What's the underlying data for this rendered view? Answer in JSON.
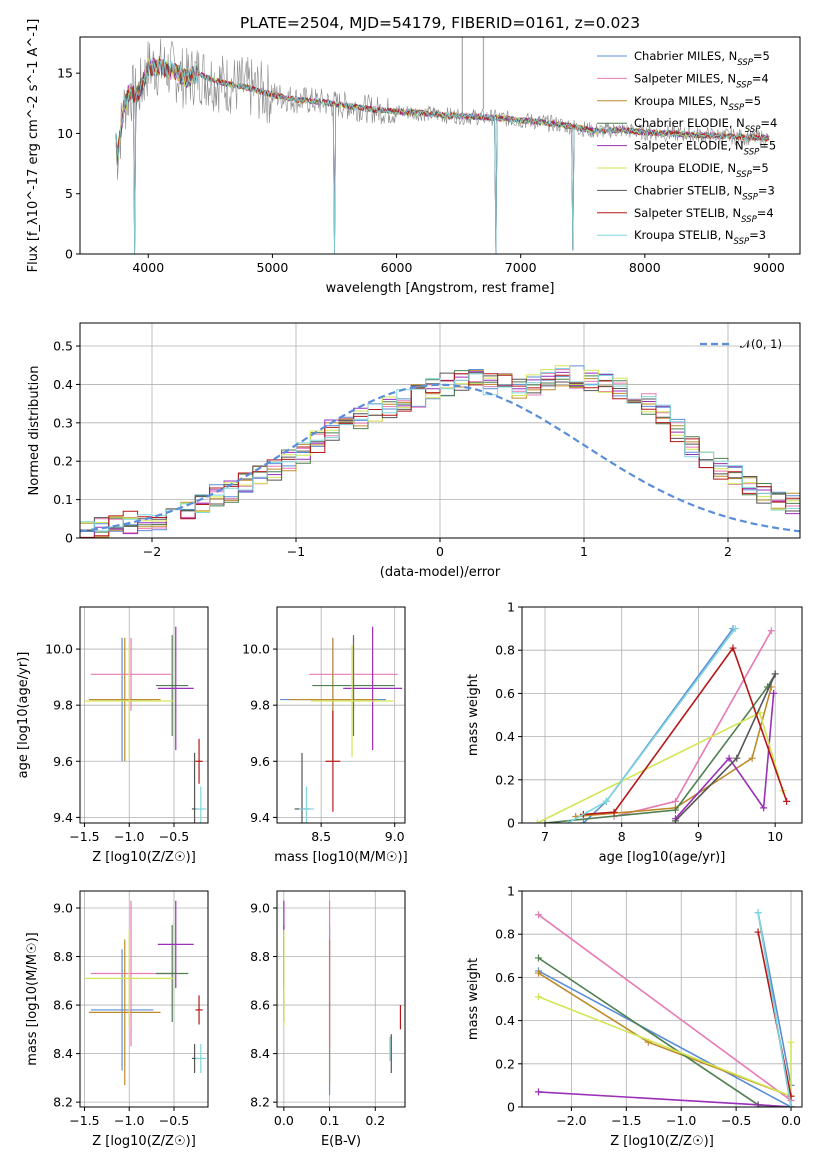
{
  "title": "PLATE=2504, MJD=54179, FIBERID=0161, z=0.023",
  "series": [
    {
      "name": "Chabrier MILES",
      "nssp": "5",
      "color": "#5b8ed8"
    },
    {
      "name": "Salpeter MILES",
      "nssp": "4",
      "color": "#e87ab4"
    },
    {
      "name": "Kroupa MILES",
      "nssp": "5",
      "color": "#c08a2a"
    },
    {
      "name": "Chabrier ELODIE",
      "nssp": "4",
      "color": "#4f7f4f"
    },
    {
      "name": "Salpeter ELODIE",
      "nssp": "5",
      "color": "#9a2fb8"
    },
    {
      "name": "Kroupa ELODIE",
      "nssp": "5",
      "color": "#d2e655"
    },
    {
      "name": "Chabrier STELIB",
      "nssp": "3",
      "color": "#555555"
    },
    {
      "name": "Salpeter STELIB",
      "nssp": "4",
      "color": "#b51818"
    },
    {
      "name": "Kroupa STELIB",
      "nssp": "3",
      "color": "#7fd6dd"
    }
  ],
  "chart_data": [
    {
      "id": "spectrum",
      "type": "line",
      "xlabel": "wavelength [Angstrom, rest frame]",
      "ylabel": "Flux [f_λ10^-17 erg cm^-2 s^-1 A^-1]",
      "xlim": [
        3450,
        9250
      ],
      "ylim": [
        0,
        18
      ],
      "xticks": [
        4000,
        5000,
        6000,
        7000,
        8000,
        9000
      ],
      "yticks": [
        0,
        5,
        10,
        15
      ],
      "grid": false,
      "legend": "top-right",
      "spectrum_points": [
        [
          3750,
          8.0
        ],
        [
          3800,
          12
        ],
        [
          3850,
          13.5
        ],
        [
          3900,
          13
        ],
        [
          3950,
          14
        ],
        [
          4000,
          15.5
        ],
        [
          4100,
          15.5
        ],
        [
          4200,
          15.2
        ],
        [
          4300,
          14.5
        ],
        [
          4400,
          15
        ],
        [
          4500,
          14.5
        ],
        [
          4600,
          14.2
        ],
        [
          4700,
          14
        ],
        [
          4800,
          13.8
        ],
        [
          4900,
          13.5
        ],
        [
          5000,
          13.2
        ],
        [
          5200,
          12.8
        ],
        [
          5400,
          12.6
        ],
        [
          5600,
          12.3
        ],
        [
          5800,
          12
        ],
        [
          6000,
          11.8
        ],
        [
          6200,
          11.7
        ],
        [
          6400,
          11.5
        ],
        [
          6600,
          11.4
        ],
        [
          6800,
          11.3
        ],
        [
          7000,
          11.1
        ],
        [
          7200,
          10.9
        ],
        [
          7400,
          10.6
        ],
        [
          7600,
          10.2
        ],
        [
          7800,
          10.3
        ],
        [
          8000,
          10.1
        ],
        [
          8200,
          10.0
        ],
        [
          8400,
          9.9
        ],
        [
          8600,
          9.8
        ],
        [
          8800,
          9.7
        ],
        [
          9000,
          9.6
        ]
      ],
      "dips": [
        [
          3890,
          0
        ],
        [
          5500,
          0
        ],
        [
          6800,
          0
        ],
        [
          7420,
          0.3
        ]
      ]
    },
    {
      "id": "residuals",
      "type": "line",
      "xlabel": "(data-model)/error",
      "ylabel": "Normed distribution",
      "xlim": [
        -2.5,
        2.5
      ],
      "ylim": [
        0,
        0.56
      ],
      "xticks": [
        -2,
        -1,
        0,
        1,
        2
      ],
      "xticklabels": [
        "−2",
        "−1",
        "0",
        "1",
        "2"
      ],
      "yticks": [
        0.0,
        0.1,
        0.2,
        0.3,
        0.4,
        0.5
      ],
      "grid": true,
      "legend": "top-right",
      "normal_label": "𝒩(0, 1)",
      "normal_color": "#5b8ed8",
      "bin_width": 0.1,
      "bin_start": -2.5,
      "base_hist": [
        0.02,
        0.03,
        0.035,
        0.04,
        0.04,
        0.05,
        0.06,
        0.07,
        0.09,
        0.11,
        0.12,
        0.14,
        0.16,
        0.18,
        0.2,
        0.22,
        0.25,
        0.28,
        0.3,
        0.31,
        0.33,
        0.34,
        0.36,
        0.37,
        0.39,
        0.4,
        0.41,
        0.41,
        0.4,
        0.4,
        0.39,
        0.4,
        0.41,
        0.42,
        0.42,
        0.41,
        0.4,
        0.39,
        0.37,
        0.35,
        0.32,
        0.28,
        0.24,
        0.21,
        0.18,
        0.16,
        0.14,
        0.12,
        0.1,
        0.09,
        0.08,
        0.07,
        0.06,
        0.05,
        0.05,
        0.04,
        0.04,
        0.035,
        0.03,
        0.03,
        0.03,
        0.02,
        0.02,
        0.02,
        0.02,
        0.02,
        0.02,
        0.02,
        0.02,
        0.02,
        0.02,
        0.02,
        0.02,
        0.02,
        0.02,
        0.02,
        0.02,
        0.02,
        0.02,
        0.02,
        0.02,
        0.02,
        0.02,
        0.02,
        0.02,
        0.02,
        0.02,
        0.02,
        0.02,
        0.02,
        0.02,
        0.02,
        0.02,
        0.02,
        0.02,
        0.02,
        0.02,
        0.02,
        0.02,
        0.02
      ]
    },
    {
      "id": "age-vs-Z",
      "type": "scatter",
      "xlabel": "Z [log10(Z/Z☉)]",
      "ylabel": "age [log10(age/yr)]",
      "xlim": [
        -1.55,
        -0.12
      ],
      "ylim": [
        9.38,
        10.15
      ],
      "xticks": [
        -1.5,
        -1.0,
        -0.5
      ],
      "xticklabels": [
        "−1.5",
        "−1.0",
        "−0.5"
      ],
      "yticks": [
        9.4,
        9.6,
        9.8,
        10.0
      ],
      "yticklabels": [
        "9.4",
        "9.6",
        "9.8",
        "10.0"
      ],
      "grid": true,
      "points": [
        [
          -1.08,
          9.82,
          0.35,
          0.22
        ],
        [
          -0.98,
          9.91,
          0.45,
          0.13
        ],
        [
          -1.05,
          9.82,
          0.4,
          0.22
        ],
        [
          -0.52,
          9.87,
          0.18,
          0.18
        ],
        [
          -0.48,
          9.86,
          0.2,
          0.22
        ],
        [
          -1.0,
          9.815,
          0.5,
          0.2
        ],
        [
          -0.27,
          9.43,
          0.03,
          0.2
        ],
        [
          -0.22,
          9.6,
          0.04,
          0.08
        ],
        [
          -0.2,
          9.43,
          0.06,
          0.08
        ]
      ]
    },
    {
      "id": "age-vs-mass",
      "type": "scatter",
      "xlabel": "mass [log10(M/M☉)]",
      "ylabel": "",
      "xlim": [
        8.2,
        9.07
      ],
      "ylim": [
        9.38,
        10.15
      ],
      "xticks": [
        8.5,
        9.0
      ],
      "xticklabels": [
        "8.5",
        "9.0"
      ],
      "yticks": [
        9.4,
        9.6,
        9.8,
        10.0
      ],
      "yticklabels": [
        "9.4",
        "9.6",
        "9.8",
        "10.0"
      ],
      "grid": true,
      "points": [
        [
          8.58,
          9.82,
          0.36,
          0.22
        ],
        [
          8.72,
          9.91,
          0.3,
          0.13
        ],
        [
          8.58,
          9.82,
          0.3,
          0.22
        ],
        [
          8.72,
          9.87,
          0.28,
          0.18
        ],
        [
          8.85,
          9.86,
          0.2,
          0.22
        ],
        [
          8.71,
          9.815,
          0.28,
          0.2
        ],
        [
          8.37,
          9.43,
          0.05,
          0.2
        ],
        [
          8.58,
          9.6,
          0.05,
          0.18
        ],
        [
          8.4,
          9.43,
          0.05,
          0.08
        ]
      ]
    },
    {
      "id": "massweight-vs-age",
      "type": "line",
      "xlabel": "age [log10(age/yr)]",
      "ylabel": "mass weight",
      "xlim": [
        6.7,
        10.35
      ],
      "ylim": [
        0,
        1.0
      ],
      "xticks": [
        7,
        8,
        9,
        10
      ],
      "yticks": [
        0.0,
        0.2,
        0.4,
        0.6,
        0.8,
        1.0
      ],
      "grid": true,
      "lines": [
        [
          [
            7.5,
            0.0
          ],
          [
            7.8,
            0.1
          ],
          [
            9.45,
            0.9
          ]
        ],
        [
          [
            7.9,
            0.03
          ],
          [
            8.7,
            0.1
          ],
          [
            9.95,
            0.89
          ]
        ],
        [
          [
            7.4,
            0.03
          ],
          [
            8.7,
            0.07
          ],
          [
            9.7,
            0.3
          ],
          [
            9.95,
            0.63
          ]
        ],
        [
          [
            7.0,
            0.0
          ],
          [
            8.7,
            0.06
          ],
          [
            9.9,
            0.63
          ],
          [
            10.0,
            0.69
          ]
        ],
        [
          [
            8.7,
            0.02
          ],
          [
            9.4,
            0.3
          ],
          [
            9.85,
            0.07
          ],
          [
            9.98,
            0.6
          ]
        ],
        [
          [
            6.9,
            0.0
          ],
          [
            9.8,
            0.51
          ],
          [
            10.1,
            0.15
          ]
        ],
        [
          [
            8.7,
            0.01
          ],
          [
            9.5,
            0.3
          ],
          [
            10.0,
            0.69
          ]
        ],
        [
          [
            7.5,
            0.04
          ],
          [
            7.9,
            0.05
          ],
          [
            9.45,
            0.81
          ],
          [
            10.15,
            0.1
          ]
        ],
        [
          [
            7.3,
            0.0
          ],
          [
            7.8,
            0.1
          ],
          [
            9.48,
            0.9
          ]
        ]
      ]
    },
    {
      "id": "mass-vs-Z",
      "type": "scatter",
      "xlabel": "Z [log10(Z/Z☉)]",
      "ylabel": "mass [log10(M/M☉)]",
      "xlim": [
        -1.55,
        -0.12
      ],
      "ylim": [
        8.18,
        9.07
      ],
      "xticks": [
        -1.5,
        -1.0,
        -0.5
      ],
      "xticklabels": [
        "−1.5",
        "−1.0",
        "−0.5"
      ],
      "yticks": [
        8.2,
        8.4,
        8.6,
        8.8,
        9.0
      ],
      "yticklabels": [
        "8.2",
        "8.4",
        "8.6",
        "8.8",
        "9.0"
      ],
      "grid": true,
      "points": [
        [
          -1.08,
          8.58,
          0.35,
          0.25
        ],
        [
          -0.98,
          8.73,
          0.45,
          0.3
        ],
        [
          -1.05,
          8.57,
          0.4,
          0.3
        ],
        [
          -0.52,
          8.73,
          0.18,
          0.2
        ],
        [
          -0.48,
          8.85,
          0.2,
          0.18
        ],
        [
          -1.0,
          8.71,
          0.5,
          0.2
        ],
        [
          -0.27,
          8.38,
          0.03,
          0.06
        ],
        [
          -0.22,
          8.58,
          0.04,
          0.06
        ],
        [
          -0.2,
          8.38,
          0.06,
          0.06
        ]
      ]
    },
    {
      "id": "mass-vs-ebv",
      "type": "scatter",
      "xlabel": "E(B-V)",
      "ylabel": "",
      "xlim": [
        -0.015,
        0.265
      ],
      "ylim": [
        8.18,
        9.07
      ],
      "xticks": [
        0.0,
        0.1,
        0.2
      ],
      "xticklabels": [
        "0.0",
        "0.1",
        "0.2"
      ],
      "yticks": [
        8.2,
        8.4,
        8.6,
        8.8,
        9.0
      ],
      "yticklabels": [
        "8.2",
        "8.4",
        "8.6",
        "8.8",
        "9.0"
      ],
      "grid": true,
      "points": [
        [
          0.1,
          8.58,
          0.0,
          0.35
        ],
        [
          0.1,
          8.73,
          0.0,
          0.3
        ],
        [
          0.1,
          8.57,
          0.0,
          0.3
        ],
        [
          0.0,
          8.73,
          0.0,
          0.2
        ],
        [
          0.0,
          8.85,
          0.0,
          0.18
        ],
        [
          0.0,
          8.71,
          0.0,
          0.2
        ],
        [
          0.235,
          8.4,
          0.0,
          0.08
        ],
        [
          0.255,
          8.55,
          0.0,
          0.05
        ],
        [
          0.232,
          8.42,
          0.0,
          0.05
        ]
      ]
    },
    {
      "id": "massweight-vs-Z",
      "type": "line",
      "xlabel": "Z [log10(Z/Z☉)]",
      "ylabel": "mass weight",
      "xlim": [
        -2.45,
        0.1
      ],
      "ylim": [
        0,
        1.0
      ],
      "xticks": [
        -2.0,
        -1.5,
        -1.0,
        -0.5,
        0.0
      ],
      "xticklabels": [
        "−2.0",
        "−1.5",
        "−1.0",
        "−0.5",
        "0.0"
      ],
      "yticks": [
        0.0,
        0.2,
        0.4,
        0.6,
        0.8,
        1.0
      ],
      "grid": true,
      "lines": [
        [
          [
            -2.3,
            0.63
          ],
          [
            0.0,
            0.0
          ],
          [
            -0.3,
            0.9
          ],
          [
            0.0,
            0.1
          ]
        ],
        [
          [
            -2.3,
            0.89
          ],
          [
            0.0,
            0.03
          ]
        ],
        [
          [
            -2.3,
            0.62
          ],
          [
            -1.3,
            0.3
          ],
          [
            0.0,
            0.05
          ]
        ],
        [
          [
            -2.3,
            0.69
          ],
          [
            -0.3,
            0.01
          ],
          [
            0.0,
            0.0
          ]
        ],
        [
          [
            -2.3,
            0.07
          ],
          [
            -0.3,
            0.01
          ],
          [
            0.0,
            0.0
          ]
        ],
        [
          [
            -2.3,
            0.51
          ],
          [
            0.0,
            0.05
          ],
          [
            0.0,
            0.3
          ]
        ],
        [
          [
            -0.3,
            0.0
          ],
          [
            0.0,
            0.0
          ]
        ],
        [
          [
            -0.3,
            0.81
          ],
          [
            0.0,
            0.05
          ]
        ],
        [
          [
            -0.3,
            0.9
          ],
          [
            0.0,
            0.0
          ]
        ]
      ]
    }
  ]
}
